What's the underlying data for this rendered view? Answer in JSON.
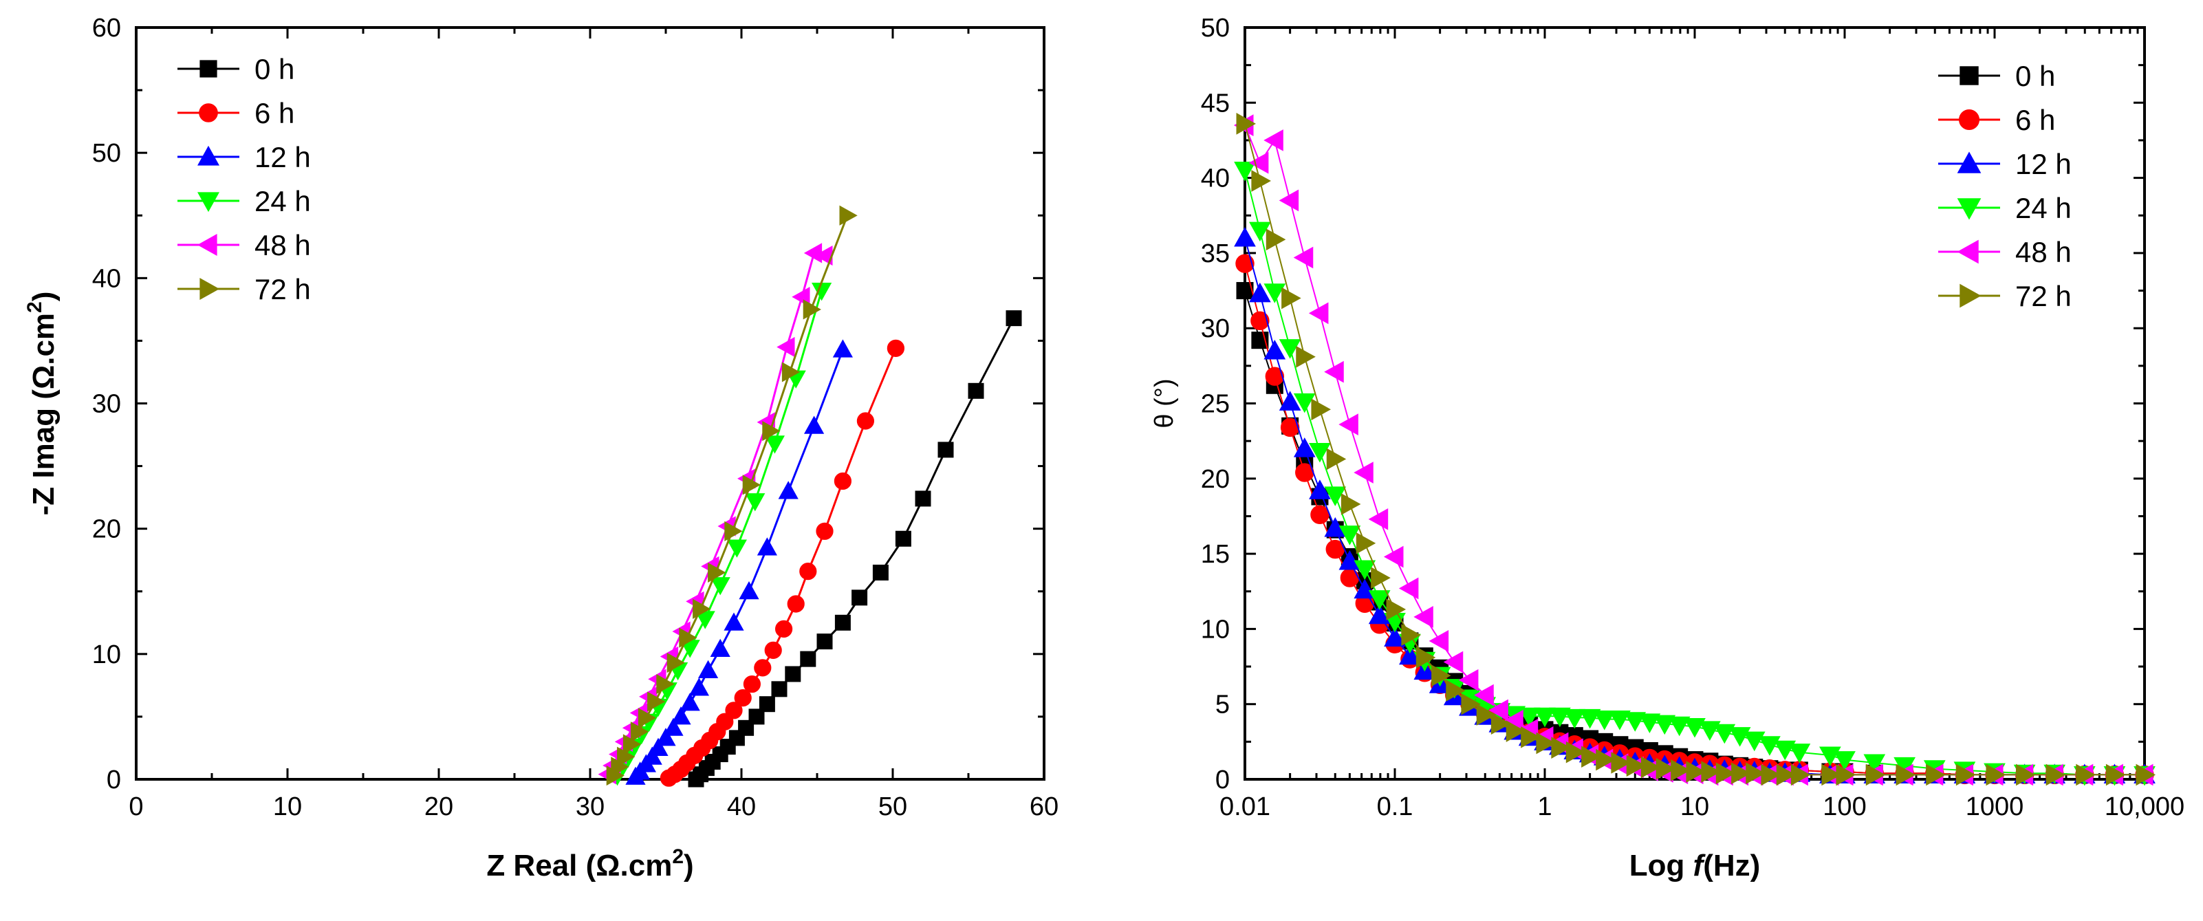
{
  "colors": {
    "0 h": "#000000",
    "6 h": "#ff0000",
    "12 h": "#0000ff",
    "24 h": "#00ff00",
    "48 h": "#ff00ff",
    "72 h": "#808000"
  },
  "chart_data": [
    {
      "type": "scatter",
      "title": "",
      "xlabel": "Z Real (Ω.cm",
      "xlabel_sup": "2",
      "xlabel_end": ")",
      "ylabel": "-Z Imag (Ω.cm",
      "ylabel_sup": "2",
      "ylabel_end": ")",
      "xlim": [
        0,
        60
      ],
      "ylim": [
        0,
        60
      ],
      "x_ticks": [
        "0",
        "10",
        "20",
        "30",
        "40",
        "50",
        "60"
      ],
      "y_ticks": [
        "0",
        "10",
        "20",
        "30",
        "40",
        "50",
        "60"
      ],
      "legend_position": "top-left",
      "series": [
        {
          "name": "0 h",
          "marker": "square",
          "x": [
            37.0,
            37.3,
            37.7,
            38.1,
            38.6,
            39.1,
            39.7,
            40.3,
            41.0,
            41.7,
            42.5,
            43.4,
            44.4,
            45.5,
            46.7,
            47.8,
            49.2,
            50.7,
            52.0,
            53.5,
            55.5,
            58.0
          ],
          "y": [
            0.0,
            0.4,
            0.9,
            1.4,
            2.0,
            2.6,
            3.3,
            4.1,
            5.0,
            6.0,
            7.2,
            8.4,
            9.6,
            11.0,
            12.5,
            14.5,
            16.5,
            19.2,
            22.4,
            26.3,
            31.0,
            36.8
          ]
        },
        {
          "name": "6 h",
          "marker": "circle",
          "x": [
            35.2,
            35.6,
            36.0,
            36.4,
            36.9,
            37.4,
            37.9,
            38.4,
            38.9,
            39.5,
            40.1,
            40.7,
            41.4,
            42.1,
            42.8,
            43.6,
            44.4,
            45.5,
            46.7,
            48.2,
            50.2
          ],
          "y": [
            0.1,
            0.4,
            0.8,
            1.3,
            1.9,
            2.5,
            3.1,
            3.8,
            4.6,
            5.5,
            6.5,
            7.6,
            8.9,
            10.3,
            12.0,
            14.0,
            16.6,
            19.8,
            23.8,
            28.6,
            34.4
          ]
        },
        {
          "name": "12 h",
          "marker": "triangle-up",
          "x": [
            33.0,
            33.3,
            33.7,
            34.1,
            34.5,
            35.0,
            35.5,
            36.0,
            36.6,
            37.2,
            37.8,
            38.6,
            39.5,
            40.5,
            41.7,
            43.1,
            44.8,
            46.7
          ],
          "y": [
            0.2,
            0.6,
            1.2,
            1.8,
            2.5,
            3.3,
            4.1,
            5.0,
            6.1,
            7.3,
            8.7,
            10.4,
            12.5,
            15.0,
            18.5,
            23.0,
            28.2,
            34.3
          ]
        },
        {
          "name": "24 h",
          "marker": "triangle-down",
          "x": [
            31.8,
            32.1,
            32.5,
            32.9,
            33.4,
            33.9,
            34.5,
            35.1,
            35.8,
            36.6,
            37.6,
            38.6,
            39.7,
            40.9,
            42.2,
            43.6,
            45.3
          ],
          "y": [
            0.3,
            0.9,
            1.7,
            2.6,
            3.6,
            4.6,
            5.8,
            7.1,
            8.7,
            10.5,
            12.8,
            15.5,
            18.5,
            22.2,
            26.8,
            32.0,
            39.0
          ]
        },
        {
          "name": "48 h",
          "marker": "triangle-left",
          "x": [
            31.2,
            31.5,
            31.9,
            32.3,
            32.8,
            33.3,
            33.9,
            34.5,
            35.3,
            36.1,
            37.0,
            38.0,
            39.1,
            40.4,
            41.7,
            43.0,
            44.0,
            44.8,
            45.5
          ],
          "y": [
            0.4,
            1.1,
            2.0,
            3.0,
            4.1,
            5.3,
            6.6,
            8.0,
            9.8,
            11.8,
            14.2,
            17.0,
            20.2,
            24.0,
            28.5,
            34.5,
            38.5,
            42.0,
            41.8
          ]
        },
        {
          "name": "72 h",
          "marker": "triangle-right",
          "x": [
            31.6,
            31.9,
            32.3,
            32.7,
            33.2,
            33.7,
            34.3,
            34.9,
            35.6,
            36.4,
            37.3,
            38.3,
            39.4,
            40.6,
            41.9,
            43.2,
            44.6,
            47.0
          ],
          "y": [
            0.3,
            1.0,
            1.8,
            2.8,
            3.8,
            4.9,
            6.2,
            7.6,
            9.3,
            11.3,
            13.6,
            16.5,
            19.8,
            23.5,
            27.8,
            32.5,
            37.5,
            45.0
          ]
        }
      ]
    },
    {
      "type": "scatter",
      "title": "",
      "xscale": "log",
      "xlabel_prefix": "Log ",
      "xlabel_italic": "f",
      "xlabel_suffix": "(Hz)",
      "ylabel": "θ (°)",
      "xlim": [
        0.01,
        10000
      ],
      "ylim": [
        0,
        50
      ],
      "x_ticks": [
        "0.01",
        "0.1",
        "1",
        "10",
        "100",
        "1000",
        "10,000"
      ],
      "x_tick_values": [
        0.01,
        0.1,
        1,
        10,
        100,
        1000,
        10000
      ],
      "y_ticks": [
        "0",
        "5",
        "10",
        "15",
        "20",
        "25",
        "30",
        "35",
        "40",
        "45",
        "50"
      ],
      "legend_position": "top-right",
      "series": [
        {
          "name": "0 h",
          "marker": "square",
          "x": [
            0.01,
            0.0126,
            0.0158,
            0.02,
            0.025,
            0.0316,
            0.04,
            0.05,
            0.063,
            0.079,
            0.1,
            0.126,
            0.158,
            0.2,
            0.25,
            0.316,
            0.4,
            0.5,
            0.63,
            0.79,
            1,
            1.26,
            1.58,
            2,
            2.5,
            3.16,
            4,
            5,
            6.3,
            7.9,
            10,
            12.6,
            15.8,
            20,
            25,
            31.6,
            40,
            50,
            80,
            100,
            158,
            251,
            398,
            631,
            1000,
            1585,
            2512,
            3981,
            6310,
            10000
          ],
          "y": [
            32.5,
            29.2,
            26.2,
            23.5,
            21.0,
            18.8,
            16.6,
            14.8,
            13.2,
            11.8,
            10.4,
            9.2,
            8.2,
            7.4,
            6.5,
            5.7,
            5.0,
            4.4,
            4.0,
            3.6,
            3.3,
            3.1,
            2.9,
            2.7,
            2.5,
            2.3,
            2.1,
            1.9,
            1.7,
            1.5,
            1.3,
            1.2,
            1.0,
            0.9,
            0.8,
            0.7,
            0.6,
            0.6,
            0.5,
            0.5,
            0.4,
            0.4,
            0.4,
            0.3,
            0.3,
            0.3,
            0.3,
            0.3,
            0.3,
            0.3
          ]
        },
        {
          "name": "6 h",
          "marker": "circle",
          "x": [
            0.01,
            0.0126,
            0.0158,
            0.02,
            0.025,
            0.0316,
            0.04,
            0.05,
            0.063,
            0.079,
            0.1,
            0.126,
            0.158,
            0.2,
            0.25,
            0.316,
            0.4,
            0.5,
            0.63,
            0.79,
            1,
            1.26,
            1.58,
            2,
            2.5,
            3.16,
            4,
            5,
            6.3,
            7.9,
            10,
            12.6,
            15.8,
            20,
            25,
            31.6,
            40,
            50,
            80,
            100,
            158,
            251,
            398,
            631,
            1000,
            1585,
            2512,
            3981,
            6310,
            10000
          ],
          "y": [
            34.3,
            30.5,
            26.8,
            23.4,
            20.4,
            17.6,
            15.3,
            13.4,
            11.7,
            10.3,
            9.0,
            8.0,
            7.1,
            6.3,
            5.6,
            5.0,
            4.4,
            3.9,
            3.5,
            3.1,
            2.8,
            2.5,
            2.3,
            2.1,
            1.9,
            1.7,
            1.5,
            1.4,
            1.3,
            1.2,
            1.1,
            1.0,
            0.9,
            0.8,
            0.8,
            0.7,
            0.6,
            0.6,
            0.5,
            0.5,
            0.4,
            0.4,
            0.4,
            0.3,
            0.3,
            0.3,
            0.3,
            0.3,
            0.3,
            0.3
          ]
        },
        {
          "name": "12 h",
          "marker": "triangle-up",
          "x": [
            0.01,
            0.0126,
            0.0158,
            0.02,
            0.025,
            0.0316,
            0.04,
            0.05,
            0.063,
            0.079,
            0.1,
            0.126,
            0.158,
            0.2,
            0.25,
            0.316,
            0.4,
            0.5,
            0.63,
            0.79,
            1,
            1.26,
            1.58,
            2,
            2.5,
            3.16,
            4,
            5,
            6.3,
            7.9,
            10,
            12.6,
            15.8,
            20,
            25,
            31.6,
            40,
            50,
            80,
            100,
            158,
            251,
            398,
            631,
            1000,
            1585,
            2512,
            3981,
            6310,
            10000
          ],
          "y": [
            36.0,
            32.3,
            28.5,
            25.1,
            22.0,
            19.2,
            16.7,
            14.5,
            12.6,
            10.9,
            9.4,
            8.2,
            7.2,
            6.3,
            5.5,
            4.8,
            4.2,
            3.7,
            3.2,
            2.8,
            2.5,
            2.2,
            1.9,
            1.7,
            1.5,
            1.3,
            1.1,
            1.0,
            0.9,
            0.8,
            0.7,
            0.6,
            0.6,
            0.5,
            0.5,
            0.4,
            0.4,
            0.4,
            0.3,
            0.3,
            0.3,
            0.3,
            0.3,
            0.3,
            0.3,
            0.3,
            0.3,
            0.3,
            0.3,
            0.3
          ]
        },
        {
          "name": "24 h",
          "marker": "triangle-down",
          "x": [
            0.01,
            0.0126,
            0.0158,
            0.02,
            0.025,
            0.0316,
            0.04,
            0.05,
            0.063,
            0.079,
            0.1,
            0.126,
            0.158,
            0.2,
            0.25,
            0.316,
            0.4,
            0.5,
            0.63,
            0.79,
            1,
            1.26,
            1.58,
            2,
            2.5,
            3.16,
            4,
            5,
            6.3,
            7.9,
            10,
            12.6,
            15.8,
            20,
            25,
            31.6,
            40,
            50,
            80,
            100,
            158,
            251,
            398,
            631,
            1000,
            1585,
            2512,
            3981,
            6310,
            10000
          ],
          "y": [
            40.5,
            36.5,
            32.4,
            28.7,
            25.1,
            21.8,
            18.9,
            16.3,
            14.0,
            12.0,
            10.5,
            9.1,
            7.9,
            6.9,
            6.1,
            5.4,
            4.9,
            4.5,
            4.3,
            4.2,
            4.2,
            4.2,
            4.1,
            4.1,
            4.0,
            4.0,
            3.9,
            3.8,
            3.7,
            3.6,
            3.5,
            3.3,
            3.1,
            2.9,
            2.6,
            2.3,
            2.0,
            1.8,
            1.6,
            1.3,
            1.1,
            0.9,
            0.7,
            0.6,
            0.5,
            0.4,
            0.4,
            0.3,
            0.3,
            0.3
          ]
        },
        {
          "name": "48 h",
          "marker": "triangle-left",
          "x": [
            0.01,
            0.0126,
            0.0158,
            0.02,
            0.025,
            0.0316,
            0.04,
            0.05,
            0.063,
            0.079,
            0.1,
            0.126,
            0.158,
            0.2,
            0.25,
            0.316,
            0.4,
            0.5,
            0.63,
            0.79,
            1,
            1.26,
            1.58,
            2,
            2.5,
            3.16,
            4,
            5,
            6.3,
            7.9,
            10,
            12.6,
            15.8,
            20,
            25,
            31.6,
            40,
            50,
            80,
            100,
            158,
            251,
            398,
            631,
            1000,
            1585,
            2512,
            3981,
            6310,
            10000
          ],
          "y": [
            43.5,
            41.0,
            42.5,
            38.5,
            34.7,
            31.0,
            27.1,
            23.6,
            20.4,
            17.3,
            14.8,
            12.7,
            10.8,
            9.2,
            7.8,
            6.6,
            5.6,
            4.6,
            3.9,
            3.3,
            2.8,
            2.4,
            2.0,
            1.6,
            1.3,
            1.0,
            0.8,
            0.6,
            0.5,
            0.4,
            0.4,
            0.3,
            0.3,
            0.3,
            0.3,
            0.3,
            0.3,
            0.3,
            0.3,
            0.3,
            0.3,
            0.3,
            0.3,
            0.3,
            0.3,
            0.3,
            0.3,
            0.3,
            0.3,
            0.3
          ]
        },
        {
          "name": "72 h",
          "marker": "triangle-right",
          "x": [
            0.01,
            0.0126,
            0.0158,
            0.02,
            0.025,
            0.0316,
            0.04,
            0.05,
            0.063,
            0.079,
            0.1,
            0.126,
            0.158,
            0.2,
            0.25,
            0.316,
            0.4,
            0.5,
            0.63,
            0.79,
            1,
            1.26,
            1.58,
            2,
            2.5,
            3.16,
            4,
            5,
            6.3,
            7.9,
            10,
            12.6,
            15.8,
            20,
            25,
            31.6,
            40,
            50,
            80,
            100,
            158,
            251,
            398,
            631,
            1000,
            1585,
            2512,
            3981,
            6310,
            10000
          ],
          "y": [
            43.6,
            39.8,
            35.9,
            32.0,
            28.1,
            24.6,
            21.3,
            18.3,
            15.7,
            13.4,
            11.3,
            9.6,
            8.1,
            6.9,
            5.9,
            5.0,
            4.3,
            3.7,
            3.2,
            2.8,
            2.4,
            2.1,
            1.8,
            1.5,
            1.3,
            1.1,
            0.9,
            0.8,
            0.7,
            0.6,
            0.5,
            0.5,
            0.4,
            0.4,
            0.4,
            0.3,
            0.3,
            0.3,
            0.3,
            0.3,
            0.3,
            0.3,
            0.3,
            0.3,
            0.3,
            0.3,
            0.3,
            0.3,
            0.3,
            0.3
          ]
        }
      ]
    }
  ]
}
